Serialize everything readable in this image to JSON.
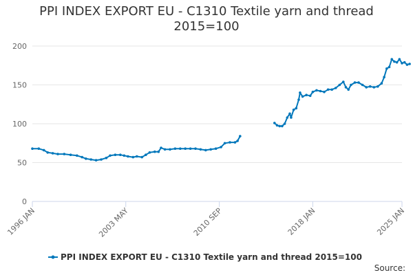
{
  "chart_data": {
    "type": "line",
    "title_line1": "PPI INDEX EXPORT EU - C1310 Textile yarn and thread",
    "title_line2": "2015=100",
    "ylim": [
      0,
      200
    ],
    "yticks": [
      0,
      50,
      100,
      150,
      200
    ],
    "xticks": [
      {
        "label": "1996 JAN",
        "t": 1996.0
      },
      {
        "label": "2003 MAY",
        "t": 2003.33
      },
      {
        "label": "2010 SEP",
        "t": 2010.67
      },
      {
        "label": "2018 JAN",
        "t": 2018.0
      },
      {
        "label": "2025 JAN",
        "t": 2025.0
      }
    ],
    "xlim": [
      1996.0,
      2025.0
    ],
    "legend": "PPI INDEX EXPORT EU - C1310 Textile yarn and thread 2015=100",
    "source_label": "Source:",
    "color": "#0077bb",
    "series": [
      {
        "name": "PPI INDEX EXPORT EU - C1310 Textile yarn and thread 2015=100",
        "segments": [
          [
            [
              1996.0,
              68
            ],
            [
              1996.5,
              68
            ],
            [
              1996.9,
              66
            ],
            [
              1997.2,
              63
            ],
            [
              1997.6,
              62
            ],
            [
              1998.0,
              61
            ],
            [
              1998.5,
              61
            ],
            [
              1999.0,
              60
            ],
            [
              1999.5,
              59
            ],
            [
              1999.9,
              57
            ],
            [
              2000.2,
              55
            ],
            [
              2000.6,
              54
            ],
            [
              2001.0,
              53
            ],
            [
              2001.4,
              54
            ],
            [
              2001.8,
              56
            ],
            [
              2002.1,
              59
            ],
            [
              2002.5,
              60
            ],
            [
              2002.9,
              60
            ],
            [
              2003.2,
              59
            ],
            [
              2003.5,
              58
            ],
            [
              2003.9,
              57
            ],
            [
              2004.2,
              58
            ],
            [
              2004.6,
              57
            ],
            [
              2004.9,
              60
            ],
            [
              2005.2,
              63
            ],
            [
              2005.6,
              64
            ],
            [
              2005.9,
              64
            ],
            [
              2006.1,
              69
            ],
            [
              2006.4,
              67
            ],
            [
              2006.8,
              67
            ],
            [
              2007.2,
              68
            ],
            [
              2007.6,
              68
            ],
            [
              2008.0,
              68
            ],
            [
              2008.4,
              68
            ],
            [
              2008.8,
              68
            ],
            [
              2009.2,
              67
            ],
            [
              2009.6,
              66
            ],
            [
              2010.0,
              67
            ],
            [
              2010.4,
              68
            ],
            [
              2010.8,
              70
            ],
            [
              2011.1,
              75
            ],
            [
              2011.5,
              76
            ],
            [
              2011.9,
              76
            ],
            [
              2012.1,
              78
            ],
            [
              2012.3,
              84
            ]
          ],
          [
            [
              2015.0,
              101
            ],
            [
              2015.2,
              98
            ],
            [
              2015.4,
              97
            ],
            [
              2015.6,
              97
            ],
            [
              2015.8,
              100
            ],
            [
              2016.0,
              108
            ],
            [
              2016.2,
              113
            ],
            [
              2016.3,
              108
            ],
            [
              2016.5,
              118
            ],
            [
              2016.7,
              120
            ],
            [
              2016.9,
              131
            ],
            [
              2017.0,
              140
            ],
            [
              2017.2,
              135
            ],
            [
              2017.5,
              137
            ],
            [
              2017.8,
              136
            ],
            [
              2018.0,
              141
            ],
            [
              2018.3,
              143
            ],
            [
              2018.6,
              142
            ],
            [
              2018.9,
              141
            ],
            [
              2019.2,
              144
            ],
            [
              2019.5,
              144
            ],
            [
              2019.8,
              146
            ],
            [
              2020.1,
              150
            ],
            [
              2020.4,
              154
            ],
            [
              2020.6,
              147
            ],
            [
              2020.8,
              144
            ],
            [
              2021.0,
              150
            ],
            [
              2021.3,
              153
            ],
            [
              2021.6,
              153
            ],
            [
              2021.9,
              150
            ],
            [
              2022.2,
              147
            ],
            [
              2022.5,
              148
            ],
            [
              2022.8,
              147
            ],
            [
              2023.1,
              148
            ],
            [
              2023.4,
              152
            ],
            [
              2023.6,
              160
            ],
            [
              2023.8,
              171
            ],
            [
              2024.0,
              173
            ],
            [
              2024.2,
              183
            ],
            [
              2024.4,
              180
            ],
            [
              2024.6,
              179
            ],
            [
              2024.8,
              183
            ],
            [
              2025.0,
              178
            ],
            [
              2025.2,
              179
            ],
            [
              2025.4,
              176
            ],
            [
              2025.6,
              177
            ]
          ]
        ]
      }
    ]
  }
}
